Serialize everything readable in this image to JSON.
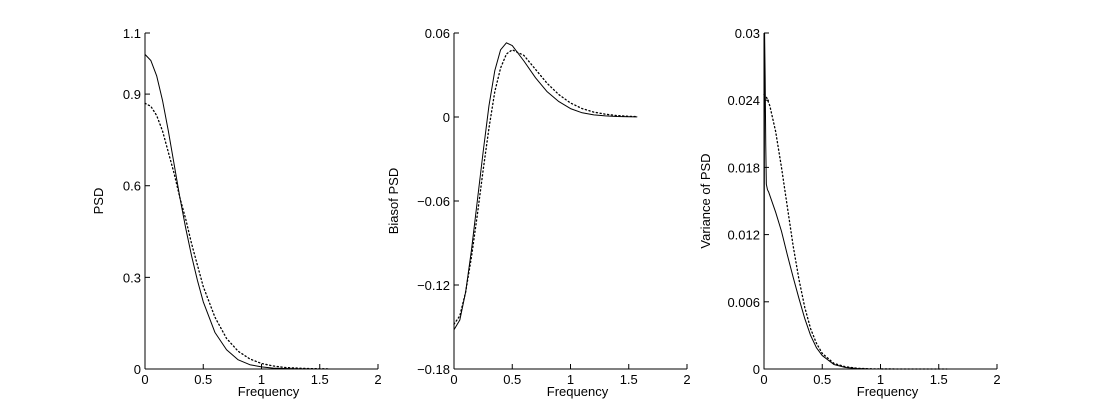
{
  "chart_data": [
    {
      "type": "line",
      "title": "",
      "xlabel": "Frequency",
      "ylabel": "PSD",
      "xlim": [
        0,
        2
      ],
      "ylim": [
        0,
        1.1
      ],
      "xticks": [
        0,
        0.5,
        1,
        1.5,
        2
      ],
      "xtick_labels": [
        "0",
        "0.5",
        "1",
        "1.5",
        "2"
      ],
      "yticks": [
        0,
        0.3,
        0.6,
        0.9,
        1.1
      ],
      "ytick_labels": [
        "0",
        "0.3",
        "0.6",
        "0.9",
        "1.1"
      ],
      "grid": false,
      "legend": "none",
      "series": [
        {
          "style": "solid",
          "x": [
            0,
            0.05,
            0.1,
            0.15,
            0.2,
            0.25,
            0.3,
            0.35,
            0.4,
            0.45,
            0.5,
            0.6,
            0.7,
            0.8,
            0.9,
            1.0,
            1.1,
            1.2,
            1.3,
            1.4,
            1.5,
            1.57
          ],
          "y": [
            1.03,
            1.01,
            0.96,
            0.88,
            0.78,
            0.67,
            0.56,
            0.46,
            0.37,
            0.29,
            0.22,
            0.12,
            0.063,
            0.03,
            0.014,
            0.007,
            0.003,
            0.0015,
            0.0008,
            0.0004,
            0.0002,
            0.0001
          ]
        },
        {
          "style": "dotted",
          "x": [
            0,
            0.05,
            0.1,
            0.15,
            0.2,
            0.25,
            0.3,
            0.35,
            0.4,
            0.45,
            0.5,
            0.6,
            0.7,
            0.8,
            0.9,
            1.0,
            1.1,
            1.2,
            1.3,
            1.4,
            1.5,
            1.57
          ],
          "y": [
            0.87,
            0.86,
            0.83,
            0.78,
            0.71,
            0.64,
            0.56,
            0.49,
            0.41,
            0.34,
            0.27,
            0.17,
            0.1,
            0.058,
            0.033,
            0.018,
            0.01,
            0.005,
            0.003,
            0.0015,
            0.0008,
            0.0005
          ]
        }
      ]
    },
    {
      "type": "line",
      "title": "",
      "xlabel": "Frequency",
      "ylabel": "Biasof PSD",
      "xlim": [
        0,
        2
      ],
      "ylim": [
        -0.18,
        0.06
      ],
      "xticks": [
        0,
        0.5,
        1,
        1.5,
        2
      ],
      "xtick_labels": [
        "0",
        "0.5",
        "1",
        "1.5",
        "2"
      ],
      "yticks": [
        -0.18,
        -0.12,
        -0.06,
        0,
        0.06
      ],
      "ytick_labels": [
        "−0.18",
        "−0.12",
        "−0.06",
        "0",
        "0.06"
      ],
      "grid": false,
      "legend": "none",
      "series": [
        {
          "style": "solid",
          "x": [
            0,
            0.05,
            0.1,
            0.15,
            0.2,
            0.25,
            0.3,
            0.35,
            0.4,
            0.45,
            0.5,
            0.6,
            0.7,
            0.8,
            0.9,
            1.0,
            1.1,
            1.2,
            1.3,
            1.4,
            1.5,
            1.57
          ],
          "y": [
            -0.152,
            -0.145,
            -0.125,
            -0.095,
            -0.06,
            -0.025,
            0.008,
            0.033,
            0.048,
            0.053,
            0.051,
            0.04,
            0.028,
            0.018,
            0.011,
            0.006,
            0.003,
            0.0015,
            0.0008,
            0.0004,
            0.0002,
            0.0001
          ]
        },
        {
          "style": "dotted",
          "x": [
            0,
            0.05,
            0.1,
            0.15,
            0.2,
            0.25,
            0.3,
            0.35,
            0.4,
            0.45,
            0.5,
            0.6,
            0.7,
            0.8,
            0.9,
            1.0,
            1.1,
            1.2,
            1.3,
            1.4,
            1.5,
            1.57
          ],
          "y": [
            -0.148,
            -0.142,
            -0.125,
            -0.1,
            -0.07,
            -0.038,
            -0.008,
            0.018,
            0.035,
            0.045,
            0.048,
            0.044,
            0.034,
            0.024,
            0.016,
            0.01,
            0.006,
            0.0035,
            0.002,
            0.001,
            0.0005,
            0.0003
          ]
        }
      ]
    },
    {
      "type": "line",
      "title": "",
      "xlabel": "Frequency",
      "ylabel": "Variance of PSD",
      "xlim": [
        0,
        2
      ],
      "ylim": [
        0,
        0.03
      ],
      "xticks": [
        0,
        0.5,
        1,
        1.5,
        2
      ],
      "xtick_labels": [
        "0",
        "0.5",
        "1",
        "1.5",
        "2"
      ],
      "yticks": [
        0,
        0.006,
        0.012,
        0.018,
        0.024,
        0.03
      ],
      "ytick_labels": [
        "0",
        "0.006",
        "0.012",
        "0.018",
        "0.024",
        "0.03"
      ],
      "grid": false,
      "legend": "none",
      "series": [
        {
          "style": "solid",
          "x": [
            0,
            0.005,
            0.01,
            0.015,
            0.02,
            0.03,
            0.04,
            0.05,
            0.1,
            0.15,
            0.2,
            0.25,
            0.3,
            0.35,
            0.4,
            0.45,
            0.5,
            0.6,
            0.7,
            0.8,
            0.9,
            1.0,
            1.2,
            1.4,
            1.57
          ],
          "y": [
            0,
            0.03,
            0.026,
            0.02,
            0.0165,
            0.016,
            0.0158,
            0.0155,
            0.014,
            0.0123,
            0.0102,
            0.0082,
            0.0063,
            0.0045,
            0.003,
            0.0019,
            0.0012,
            0.0004,
            0.00013,
            4e-05,
            1e-05,
            5e-06,
            1e-06,
            0,
            0
          ]
        },
        {
          "style": "dotted",
          "x": [
            0,
            0.02,
            0.05,
            0.1,
            0.15,
            0.2,
            0.25,
            0.3,
            0.35,
            0.4,
            0.45,
            0.5,
            0.6,
            0.7,
            0.8,
            0.9,
            1.0,
            1.2,
            1.4,
            1.57
          ],
          "y": [
            0.0245,
            0.0243,
            0.0235,
            0.0212,
            0.018,
            0.0145,
            0.011,
            0.008,
            0.0055,
            0.0036,
            0.0023,
            0.0014,
            0.0005,
            0.0002,
            6e-05,
            2e-05,
            6e-06,
            1e-06,
            0,
            0
          ]
        }
      ]
    }
  ]
}
